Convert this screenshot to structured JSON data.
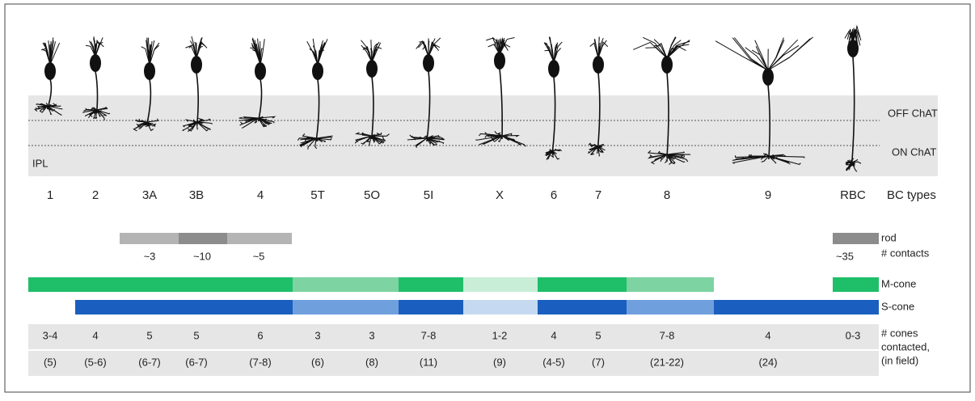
{
  "layers": {
    "ipl": "IPL",
    "off_chat": "OFF ChAT",
    "on_chat": "ON ChAT"
  },
  "types": {
    "labels": [
      "1",
      "2",
      "3A",
      "3B",
      "4",
      "5T",
      "5O",
      "5I",
      "X",
      "6",
      "7",
      "8",
      "9",
      "RBC"
    ],
    "title": "BC types"
  },
  "rod": {
    "label": "rod",
    "contacts_label": "# contacts",
    "contacts": [
      "~3",
      "~10",
      "~5"
    ],
    "rbc_contacts": "~35"
  },
  "cones": {
    "m_label": "M-cone",
    "s_label": "S-cone",
    "counts": [
      "3-4",
      "4",
      "5",
      "5",
      "6",
      "3",
      "3",
      "7-8",
      "1-2",
      "4",
      "5",
      "7-8",
      "4",
      "0-3"
    ],
    "in_field": [
      "(5)",
      "(5-6)",
      "(6-7)",
      "(6-7)",
      "(7-8)",
      "(6)",
      "(8)",
      "(11)",
      "(9)",
      "(4-5)",
      "(7)",
      "(21-22)",
      "(24)"
    ],
    "label_lines": [
      "# cones",
      "contacted,",
      "(in field)"
    ]
  }
}
